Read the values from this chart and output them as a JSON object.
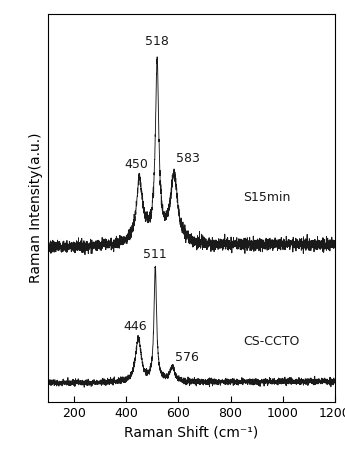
{
  "xlabel": "Raman Shift (cm⁻¹)",
  "ylabel": "Raman Intensity(a.u.)",
  "xlim": [
    100,
    1200
  ],
  "xticklabels": [
    "200",
    "400",
    "600",
    "800",
    "1000",
    "1200"
  ],
  "xticks": [
    200,
    400,
    600,
    800,
    1000,
    1200
  ],
  "label_s15": "S15min",
  "label_cs": "CS-CCTO",
  "color": "#1a1a1a",
  "fontsize_labels": 10,
  "fontsize_ticks": 9,
  "fontsize_annot": 9
}
